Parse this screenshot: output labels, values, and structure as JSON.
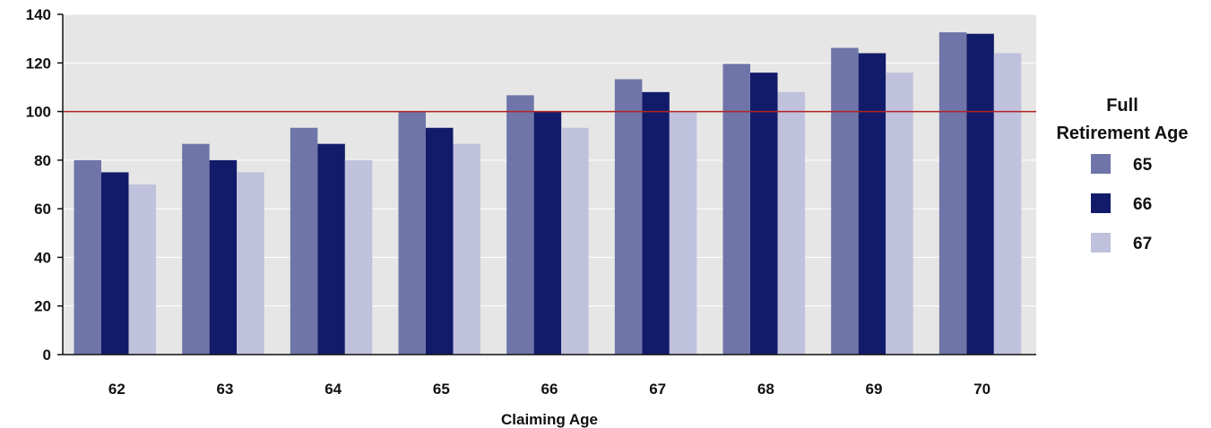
{
  "chart_data": {
    "type": "bar",
    "xlabel": "Claiming Age",
    "ylabel": "",
    "ylim": [
      0,
      140
    ],
    "yticks": [
      0,
      20,
      40,
      60,
      80,
      100,
      120,
      140
    ],
    "grid": true,
    "categories": [
      "62",
      "63",
      "64",
      "65",
      "66",
      "67",
      "68",
      "69",
      "70"
    ],
    "reference_line": {
      "value": 100,
      "color": "#b22222"
    },
    "legend": {
      "title_line1": "Full",
      "title_line2": "Retirement Age",
      "placement": "right"
    },
    "series": [
      {
        "name": "65",
        "color": "#6f75a8",
        "values": [
          80,
          86.7,
          93.3,
          100,
          106.7,
          113.3,
          119.6,
          126.2,
          132.6
        ]
      },
      {
        "name": "66",
        "color": "#121b6a",
        "values": [
          75,
          80,
          86.7,
          93.3,
          100,
          108,
          116,
          124,
          132
        ]
      },
      {
        "name": "67",
        "color": "#c0c1dc",
        "values": [
          70,
          75,
          80,
          86.7,
          93.3,
          100,
          108,
          116,
          124
        ]
      }
    ],
    "plot_background": "#e6e6e6",
    "gridline_color": "#ffffff"
  }
}
